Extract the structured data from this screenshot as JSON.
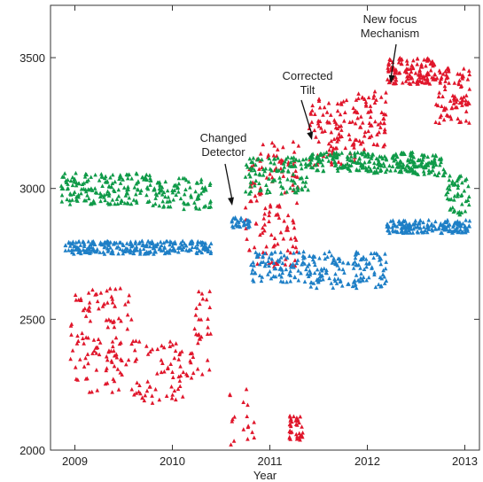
{
  "chart_data": {
    "type": "scatter",
    "title": "",
    "xlabel": "Year",
    "ylabel": "",
    "xlim": [
      2008.75,
      2013.15
    ],
    "ylim": [
      2000,
      3700
    ],
    "x_ticks": [
      "2009",
      "2010",
      "2011",
      "2012",
      "2013"
    ],
    "y_ticks": [
      "2000",
      "2500",
      "3000",
      "3500"
    ],
    "grid": false,
    "legend": "none",
    "colors": {
      "red": "#e0162b",
      "green": "#0f9a48",
      "blue": "#1e7fc6"
    },
    "series": [
      {
        "color": "red",
        "segments": [
          {
            "x0": 2008.95,
            "x1": 2009.6,
            "lo": 2220,
            "hi": 2620,
            "count": 120
          },
          {
            "x0": 2009.6,
            "x1": 2010.2,
            "lo": 2180,
            "hi": 2420,
            "count": 70
          },
          {
            "x0": 2010.2,
            "x1": 2010.4,
            "lo": 2280,
            "hi": 2620,
            "count": 30
          },
          {
            "x0": 2010.55,
            "x1": 2010.85,
            "lo": 2020,
            "hi": 2250,
            "count": 18
          },
          {
            "x0": 2010.75,
            "x1": 2011.3,
            "lo": 2700,
            "hi": 3180,
            "count": 130
          },
          {
            "x0": 2011.2,
            "x1": 2011.35,
            "lo": 2040,
            "hi": 2140,
            "count": 35
          },
          {
            "x0": 2011.4,
            "x1": 2011.9,
            "lo": 3080,
            "hi": 3350,
            "count": 100
          },
          {
            "x0": 2011.9,
            "x1": 2012.2,
            "lo": 3150,
            "hi": 3380,
            "count": 60
          },
          {
            "x0": 2012.2,
            "x1": 2012.7,
            "lo": 3400,
            "hi": 3500,
            "count": 130
          },
          {
            "x0": 2012.7,
            "x1": 2013.05,
            "lo": 3250,
            "hi": 3480,
            "count": 90
          }
        ]
      },
      {
        "color": "green",
        "segments": [
          {
            "x0": 2008.85,
            "x1": 2009.8,
            "lo": 2940,
            "hi": 3060,
            "count": 170
          },
          {
            "x0": 2009.8,
            "x1": 2010.4,
            "lo": 2920,
            "hi": 3040,
            "count": 90
          },
          {
            "x0": 2010.75,
            "x1": 2011.4,
            "lo": 2980,
            "hi": 3120,
            "count": 110
          },
          {
            "x0": 2011.4,
            "x1": 2012.5,
            "lo": 3060,
            "hi": 3140,
            "count": 220
          },
          {
            "x0": 2012.5,
            "x1": 2012.8,
            "lo": 3050,
            "hi": 3130,
            "count": 60
          },
          {
            "x0": 2012.8,
            "x1": 2013.05,
            "lo": 2900,
            "hi": 3050,
            "count": 50
          }
        ]
      },
      {
        "color": "blue",
        "segments": [
          {
            "x0": 2008.9,
            "x1": 2010.4,
            "lo": 2750,
            "hi": 2800,
            "count": 260
          },
          {
            "x0": 2010.6,
            "x1": 2010.8,
            "lo": 2850,
            "hi": 2890,
            "count": 30
          },
          {
            "x0": 2010.8,
            "x1": 2011.4,
            "lo": 2640,
            "hi": 2760,
            "count": 90
          },
          {
            "x0": 2011.4,
            "x1": 2012.2,
            "lo": 2620,
            "hi": 2760,
            "count": 140
          },
          {
            "x0": 2012.2,
            "x1": 2013.05,
            "lo": 2830,
            "hi": 2880,
            "count": 170
          }
        ]
      }
    ],
    "annotations": [
      {
        "lines": [
          "Changed",
          "Detector"
        ],
        "x": 2010.55,
        "y": 2890
      },
      {
        "lines": [
          "Corrected",
          "Tilt"
        ],
        "x": 2011.35,
        "y": 3190
      },
      {
        "lines": [
          "New focus",
          "Mechanism"
        ],
        "x": 2012.2,
        "y": 3420
      }
    ]
  }
}
